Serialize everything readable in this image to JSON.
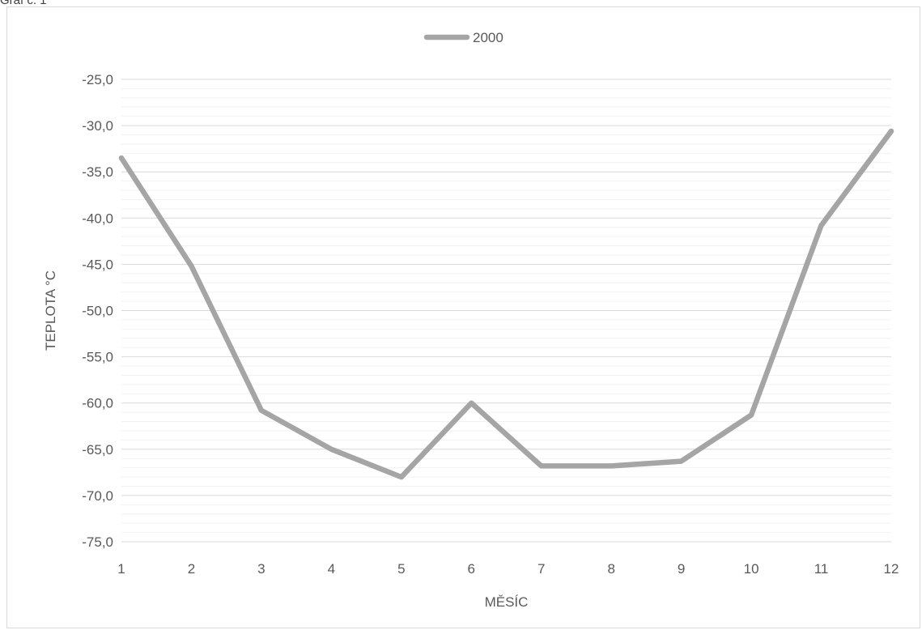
{
  "caption": "Graf č. 1",
  "chart_data": {
    "type": "line",
    "x": [
      1,
      2,
      3,
      4,
      5,
      6,
      7,
      8,
      9,
      10,
      11,
      12
    ],
    "series": [
      {
        "name": "2000",
        "color": "#a5a5a5",
        "values": [
          -33.5,
          -45.2,
          -60.8,
          -65.0,
          -68.0,
          -60.0,
          -66.8,
          -66.8,
          -66.3,
          -61.3,
          -40.8,
          -30.6
        ]
      }
    ],
    "xlabel": "MĚSÍC",
    "ylabel": "TEPLOTA °C",
    "ylim": [
      -75,
      -25
    ],
    "y_major_step": 5,
    "y_minor_step": 1,
    "y_tick_labels": [
      "-25,0",
      "-30,0",
      "-35,0",
      "-40,0",
      "-45,0",
      "-50,0",
      "-55,0",
      "-60,0",
      "-65,0",
      "-70,0",
      "-75,0"
    ],
    "x_tick_labels": [
      "1",
      "2",
      "3",
      "4",
      "5",
      "6",
      "7",
      "8",
      "9",
      "10",
      "11",
      "12"
    ],
    "grid": true,
    "legend_position": "top"
  }
}
